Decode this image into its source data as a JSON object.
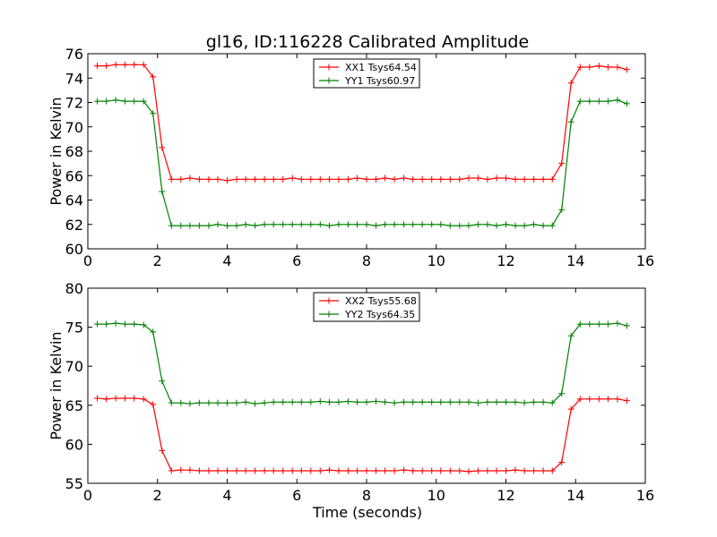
{
  "figure": {
    "title": "gl16, ID:116228 Calibrated Amplitude",
    "x_label": "Time (seconds)"
  },
  "chart_data": [
    {
      "type": "line",
      "title": "gl16, ID:116228 Calibrated Amplitude",
      "xlabel": "",
      "ylabel": "Power in Kelvin",
      "xlim": [
        0,
        16
      ],
      "ylim": [
        60,
        76
      ],
      "xticks": [
        "0",
        "2",
        "4",
        "6",
        "8",
        "10",
        "12",
        "14",
        "16"
      ],
      "yticks": [
        "60",
        "62",
        "64",
        "66",
        "68",
        "70",
        "72",
        "74",
        "76"
      ],
      "grid": false,
      "legend_position": "top-center",
      "x": [
        0.27,
        0.53,
        0.8,
        1.07,
        1.33,
        1.6,
        1.87,
        2.13,
        2.4,
        2.67,
        2.93,
        3.2,
        3.47,
        3.73,
        4.0,
        4.27,
        4.53,
        4.8,
        5.07,
        5.33,
        5.6,
        5.87,
        6.13,
        6.4,
        6.67,
        6.93,
        7.2,
        7.47,
        7.73,
        8.0,
        8.27,
        8.53,
        8.8,
        9.07,
        9.33,
        9.6,
        9.87,
        10.13,
        10.4,
        10.67,
        10.93,
        11.2,
        11.47,
        11.73,
        12.0,
        12.27,
        12.53,
        12.8,
        13.07,
        13.33,
        13.6,
        13.87,
        14.13,
        14.4,
        14.67,
        14.93,
        15.2,
        15.47
      ],
      "series": [
        {
          "name": "XX1 Tsys64.54",
          "color": "#ff0000",
          "values": [
            75.0,
            75.0,
            75.1,
            75.1,
            75.1,
            75.1,
            74.1,
            68.3,
            65.7,
            65.7,
            65.8,
            65.7,
            65.7,
            65.7,
            65.6,
            65.7,
            65.7,
            65.7,
            65.7,
            65.7,
            65.7,
            65.8,
            65.7,
            65.7,
            65.7,
            65.7,
            65.7,
            65.7,
            65.8,
            65.7,
            65.7,
            65.8,
            65.7,
            65.8,
            65.7,
            65.7,
            65.7,
            65.7,
            65.7,
            65.7,
            65.8,
            65.8,
            65.7,
            65.8,
            65.8,
            65.7,
            65.7,
            65.7,
            65.7,
            65.7,
            67.0,
            73.6,
            74.9,
            74.9,
            75.0,
            74.9,
            74.9,
            74.7
          ]
        },
        {
          "name": "YY1 Tsys60.97",
          "color": "#008000",
          "values": [
            72.1,
            72.1,
            72.2,
            72.1,
            72.1,
            72.1,
            71.1,
            64.7,
            61.9,
            61.9,
            61.9,
            61.9,
            61.9,
            62.0,
            61.9,
            61.9,
            62.0,
            61.9,
            62.0,
            62.0,
            62.0,
            62.0,
            62.0,
            62.0,
            62.0,
            61.9,
            62.0,
            62.0,
            62.0,
            62.0,
            61.9,
            62.0,
            62.0,
            62.0,
            62.0,
            62.0,
            62.0,
            62.0,
            61.9,
            61.9,
            61.9,
            62.0,
            62.0,
            61.9,
            62.0,
            61.9,
            61.9,
            62.0,
            61.9,
            61.9,
            63.2,
            70.4,
            72.1,
            72.1,
            72.1,
            72.1,
            72.2,
            71.9
          ]
        }
      ]
    },
    {
      "type": "line",
      "title": "",
      "xlabel": "Time (seconds)",
      "ylabel": "Power in Kelvin",
      "xlim": [
        0,
        16
      ],
      "ylim": [
        55,
        80
      ],
      "xticks": [
        "0",
        "2",
        "4",
        "6",
        "8",
        "10",
        "12",
        "14",
        "16"
      ],
      "yticks": [
        "55",
        "60",
        "65",
        "70",
        "75",
        "80"
      ],
      "grid": false,
      "legend_position": "top-center",
      "x": [
        0.27,
        0.53,
        0.8,
        1.07,
        1.33,
        1.6,
        1.87,
        2.13,
        2.4,
        2.67,
        2.93,
        3.2,
        3.47,
        3.73,
        4.0,
        4.27,
        4.53,
        4.8,
        5.07,
        5.33,
        5.6,
        5.87,
        6.13,
        6.4,
        6.67,
        6.93,
        7.2,
        7.47,
        7.73,
        8.0,
        8.27,
        8.53,
        8.8,
        9.07,
        9.33,
        9.6,
        9.87,
        10.13,
        10.4,
        10.67,
        10.93,
        11.2,
        11.47,
        11.73,
        12.0,
        12.27,
        12.53,
        12.8,
        13.07,
        13.33,
        13.6,
        13.87,
        14.13,
        14.4,
        14.67,
        14.93,
        15.2,
        15.47
      ],
      "series": [
        {
          "name": "XX2 Tsys55.68",
          "color": "#ff0000",
          "values": [
            65.9,
            65.8,
            65.9,
            65.9,
            65.9,
            65.8,
            65.1,
            59.2,
            56.6,
            56.7,
            56.7,
            56.6,
            56.6,
            56.6,
            56.6,
            56.6,
            56.6,
            56.6,
            56.6,
            56.6,
            56.6,
            56.6,
            56.6,
            56.6,
            56.6,
            56.7,
            56.6,
            56.6,
            56.6,
            56.6,
            56.6,
            56.6,
            56.6,
            56.7,
            56.6,
            56.6,
            56.6,
            56.6,
            56.6,
            56.6,
            56.5,
            56.6,
            56.6,
            56.6,
            56.6,
            56.7,
            56.6,
            56.6,
            56.6,
            56.6,
            57.7,
            64.5,
            65.8,
            65.8,
            65.8,
            65.8,
            65.8,
            65.6
          ]
        },
        {
          "name": "YY2 Tsys64.35",
          "color": "#008000",
          "values": [
            75.4,
            75.4,
            75.5,
            75.4,
            75.4,
            75.3,
            74.4,
            68.1,
            65.3,
            65.3,
            65.2,
            65.3,
            65.3,
            65.3,
            65.3,
            65.3,
            65.4,
            65.2,
            65.3,
            65.4,
            65.4,
            65.4,
            65.4,
            65.4,
            65.5,
            65.4,
            65.4,
            65.5,
            65.4,
            65.4,
            65.5,
            65.4,
            65.3,
            65.4,
            65.4,
            65.4,
            65.4,
            65.4,
            65.4,
            65.4,
            65.4,
            65.3,
            65.4,
            65.4,
            65.4,
            65.4,
            65.3,
            65.4,
            65.4,
            65.3,
            66.5,
            73.9,
            75.4,
            75.4,
            75.4,
            75.4,
            75.5,
            75.2
          ]
        }
      ]
    }
  ]
}
